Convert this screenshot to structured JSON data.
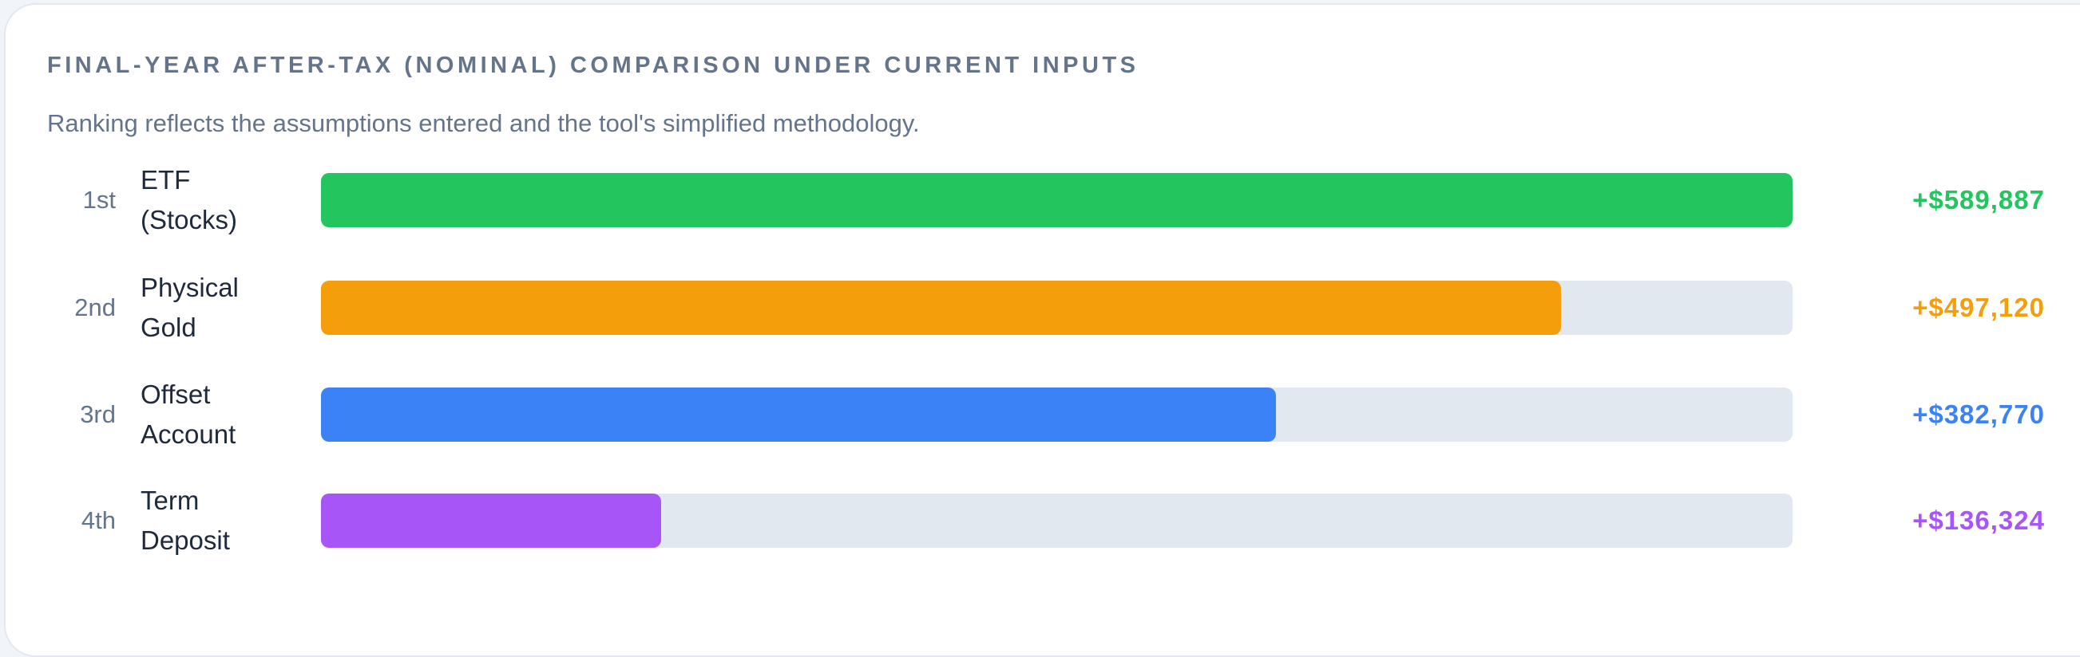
{
  "chart_data": {
    "type": "bar",
    "orientation": "horizontal",
    "title": "FINAL-YEAR AFTER-TAX (NOMINAL) COMPARISON UNDER CURRENT INPUTS",
    "subtitle": "Ranking reflects the assumptions entered and the tool's simplified methodology.",
    "ranks": [
      "1st",
      "2nd",
      "3rd",
      "4th"
    ],
    "categories": [
      "ETF (Stocks)",
      "Physical Gold",
      "Offset Account",
      "Term Deposit"
    ],
    "values": [
      589887,
      497120,
      382770,
      136324
    ],
    "value_labels": [
      "+$589,887",
      "+$497,120",
      "+$382,770",
      "+$136,324"
    ],
    "colors": [
      "#22c55e",
      "#f59e0b",
      "#3b82f6",
      "#a855f7"
    ],
    "xlim": [
      0,
      589887
    ]
  }
}
